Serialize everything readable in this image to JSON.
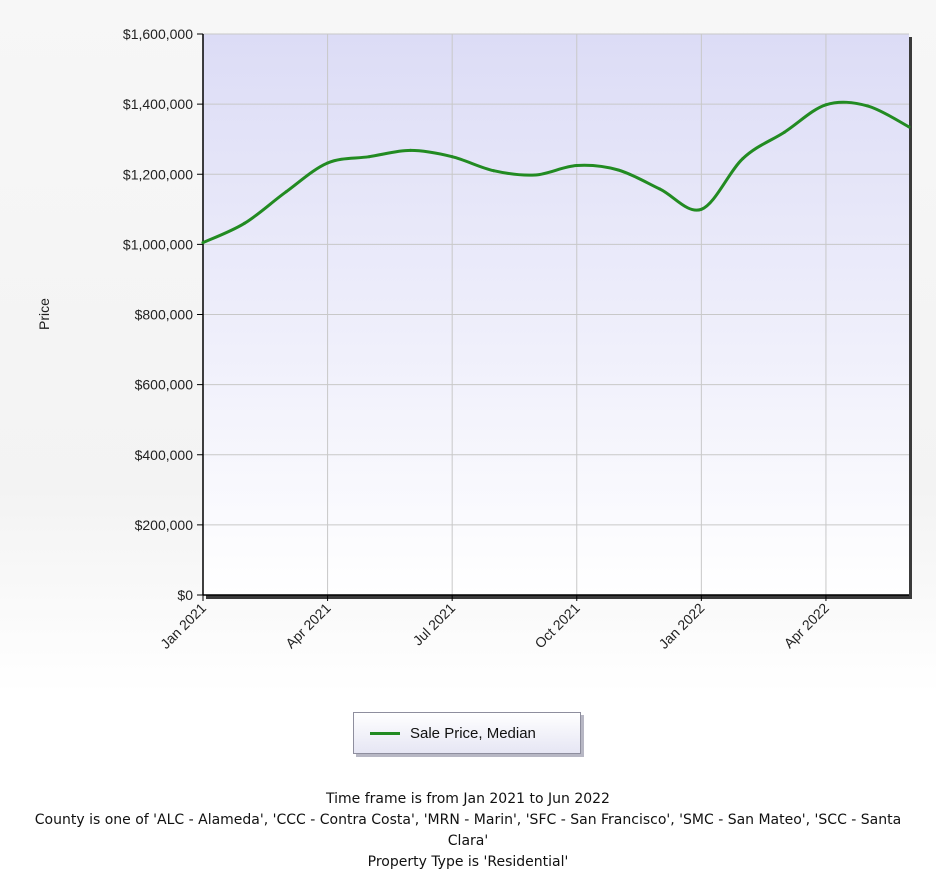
{
  "colors": {
    "series_line": "#228b22",
    "plot_bg_top": "#dcdcf6",
    "plot_bg_bottom": "#ffffff",
    "grid": "#c8c8c8"
  },
  "chart_data": {
    "type": "line",
    "title": "",
    "xlabel": "",
    "ylabel": "Price",
    "x": [
      "2021-01",
      "2021-02",
      "2021-03",
      "2021-04",
      "2021-05",
      "2021-06",
      "2021-07",
      "2021-08",
      "2021-09",
      "2021-10",
      "2021-11",
      "2021-12",
      "2022-01",
      "2022-02",
      "2022-03",
      "2022-04",
      "2022-05",
      "2022-06"
    ],
    "x_tick_labels": [
      "Jan 2021",
      "Apr 2021",
      "Jul 2021",
      "Oct 2021",
      "Jan 2022",
      "Apr 2022"
    ],
    "x_tick_dates": [
      "2021-01",
      "2021-04",
      "2021-07",
      "2021-10",
      "2022-01",
      "2022-04"
    ],
    "ylim": [
      0,
      1600000
    ],
    "y_ticks": [
      0,
      200000,
      400000,
      600000,
      800000,
      1000000,
      1200000,
      1400000,
      1600000
    ],
    "y_tick_labels": [
      "$0",
      "$200,000",
      "$400,000",
      "$600,000",
      "$800,000",
      "$1,000,000",
      "$1,200,000",
      "$1,400,000",
      "$1,600,000"
    ],
    "grid": true,
    "legend_position": "bottom-center",
    "series": [
      {
        "name": "Sale Price, Median",
        "values": [
          1005000,
          1060000,
          1150000,
          1232000,
          1250000,
          1268000,
          1250000,
          1210000,
          1198000,
          1225000,
          1212000,
          1158000,
          1100000,
          1245000,
          1320000,
          1398000,
          1395000,
          1335000
        ]
      }
    ]
  },
  "legend": {
    "label": "Sale Price, Median"
  },
  "footer": {
    "line1": "Time frame is from Jan 2021 to Jun 2022",
    "line2": "County is one of 'ALC - Alameda', 'CCC - Contra Costa', 'MRN - Marin', 'SFC - San Francisco', 'SMC - San Mateo', 'SCC - Santa Clara'",
    "line3": "Property Type is 'Residential'"
  }
}
